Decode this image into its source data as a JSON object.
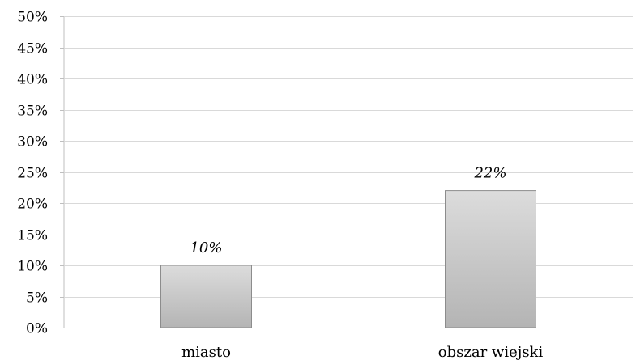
{
  "chart_data": {
    "type": "bar",
    "categories": [
      "miasto",
      "obszar wiejski"
    ],
    "values": [
      10,
      22
    ],
    "data_labels": [
      "10%",
      "22%"
    ],
    "title": "",
    "xlabel": "",
    "ylabel": "",
    "ylim": [
      0,
      50
    ],
    "y_ticks": [
      0,
      5,
      10,
      15,
      20,
      25,
      30,
      35,
      40,
      45,
      50
    ],
    "y_tick_labels": [
      "0%",
      "5%",
      "10%",
      "15%",
      "20%",
      "25%",
      "30%",
      "35%",
      "40%",
      "45%",
      "50%"
    ],
    "grid": true,
    "legend": "none",
    "colors": {
      "bar_top": "#dcdcdc",
      "bar_bottom": "#b4b4b4",
      "bar_edge": "#8c8c8c",
      "grid": "#d9d9d9",
      "axis": "#bfbfbf"
    }
  }
}
